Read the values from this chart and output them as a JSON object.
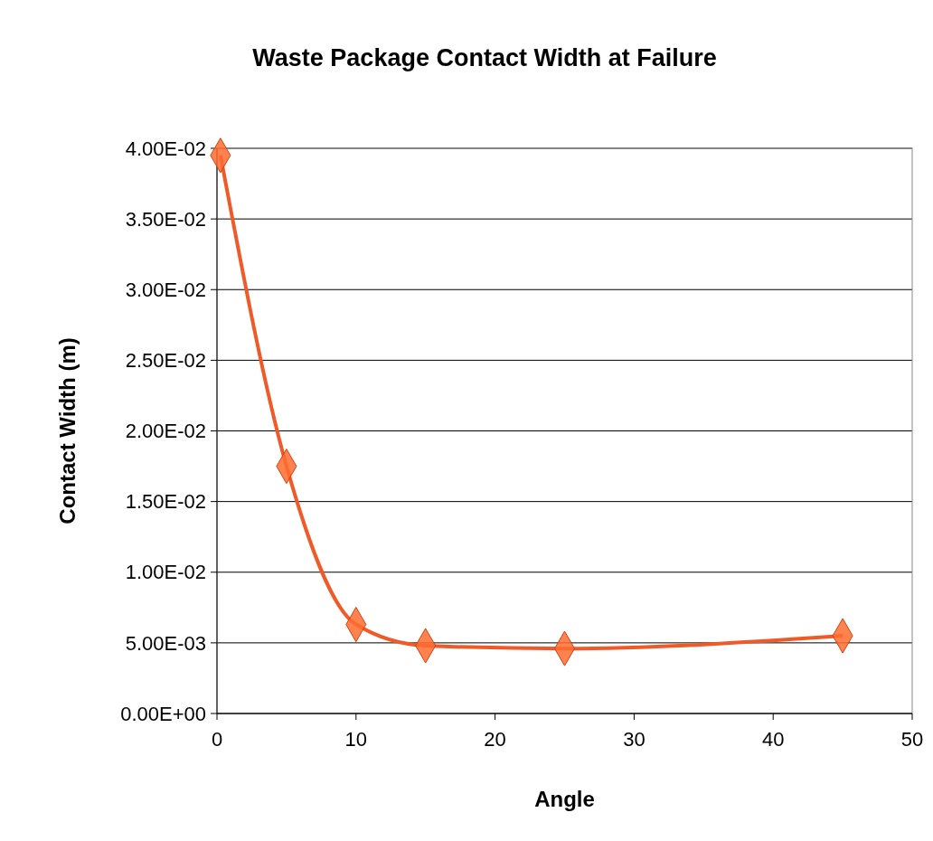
{
  "chart_data": {
    "type": "line",
    "title": "Waste Package Contact Width at Failure",
    "xlabel": "Angle",
    "ylabel": "Contact Width (m)",
    "x": [
      0.25,
      5,
      10,
      15,
      25,
      45
    ],
    "series": [
      {
        "color": "#f05a28",
        "values": [
          0.0395,
          0.0175,
          0.0063,
          0.0048,
          0.0046,
          0.0055
        ]
      }
    ],
    "xlim": [
      0,
      50
    ],
    "xticks": [
      0,
      10,
      20,
      30,
      40,
      50
    ],
    "ylim": [
      0,
      0.04
    ],
    "yticks": [
      {
        "value": 0,
        "label": "0.00E+00"
      },
      {
        "value": 0.005,
        "label": "5.00E-03"
      },
      {
        "value": 0.01,
        "label": "1.00E-02"
      },
      {
        "value": 0.015,
        "label": "1.50E-02"
      },
      {
        "value": 0.02,
        "label": "2.00E-02"
      },
      {
        "value": 0.025,
        "label": "2.50E-02"
      },
      {
        "value": 0.03,
        "label": "3.00E-02"
      },
      {
        "value": 0.035,
        "label": "3.50E-02"
      },
      {
        "value": 0.04,
        "label": "4.00E-02"
      }
    ],
    "grid": "y",
    "marker": "diamond",
    "line_style": "solid"
  }
}
